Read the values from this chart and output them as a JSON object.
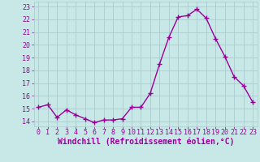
{
  "x": [
    0,
    1,
    2,
    3,
    4,
    5,
    6,
    7,
    8,
    9,
    10,
    11,
    12,
    13,
    14,
    15,
    16,
    17,
    18,
    19,
    20,
    21,
    22,
    23
  ],
  "y": [
    15.1,
    15.3,
    14.3,
    14.9,
    14.5,
    14.2,
    13.9,
    14.1,
    14.1,
    14.2,
    15.1,
    15.1,
    16.2,
    18.5,
    20.6,
    22.2,
    22.3,
    22.8,
    22.1,
    20.5,
    19.1,
    17.5,
    16.8,
    15.5
  ],
  "color": "#990099",
  "bg_color": "#c8e8e8",
  "grid_color": "#aacccc",
  "xlabel": "Windchill (Refroidissement éolien,°C)",
  "ylim": [
    13.6,
    23.4
  ],
  "xlim": [
    -0.5,
    23.5
  ],
  "yticks": [
    14,
    15,
    16,
    17,
    18,
    19,
    20,
    21,
    22,
    23
  ],
  "xticks": [
    0,
    1,
    2,
    3,
    4,
    5,
    6,
    7,
    8,
    9,
    10,
    11,
    12,
    13,
    14,
    15,
    16,
    17,
    18,
    19,
    20,
    21,
    22,
    23
  ],
  "xtick_labels": [
    "0",
    "1",
    "2",
    "3",
    "4",
    "5",
    "6",
    "7",
    "8",
    "9",
    "10",
    "11",
    "12",
    "13",
    "14",
    "15",
    "16",
    "17",
    "18",
    "19",
    "20",
    "21",
    "22",
    "23"
  ],
  "marker": "+",
  "linewidth": 1.0,
  "markersize": 4,
  "tick_fontsize": 6,
  "xlabel_fontsize": 7
}
